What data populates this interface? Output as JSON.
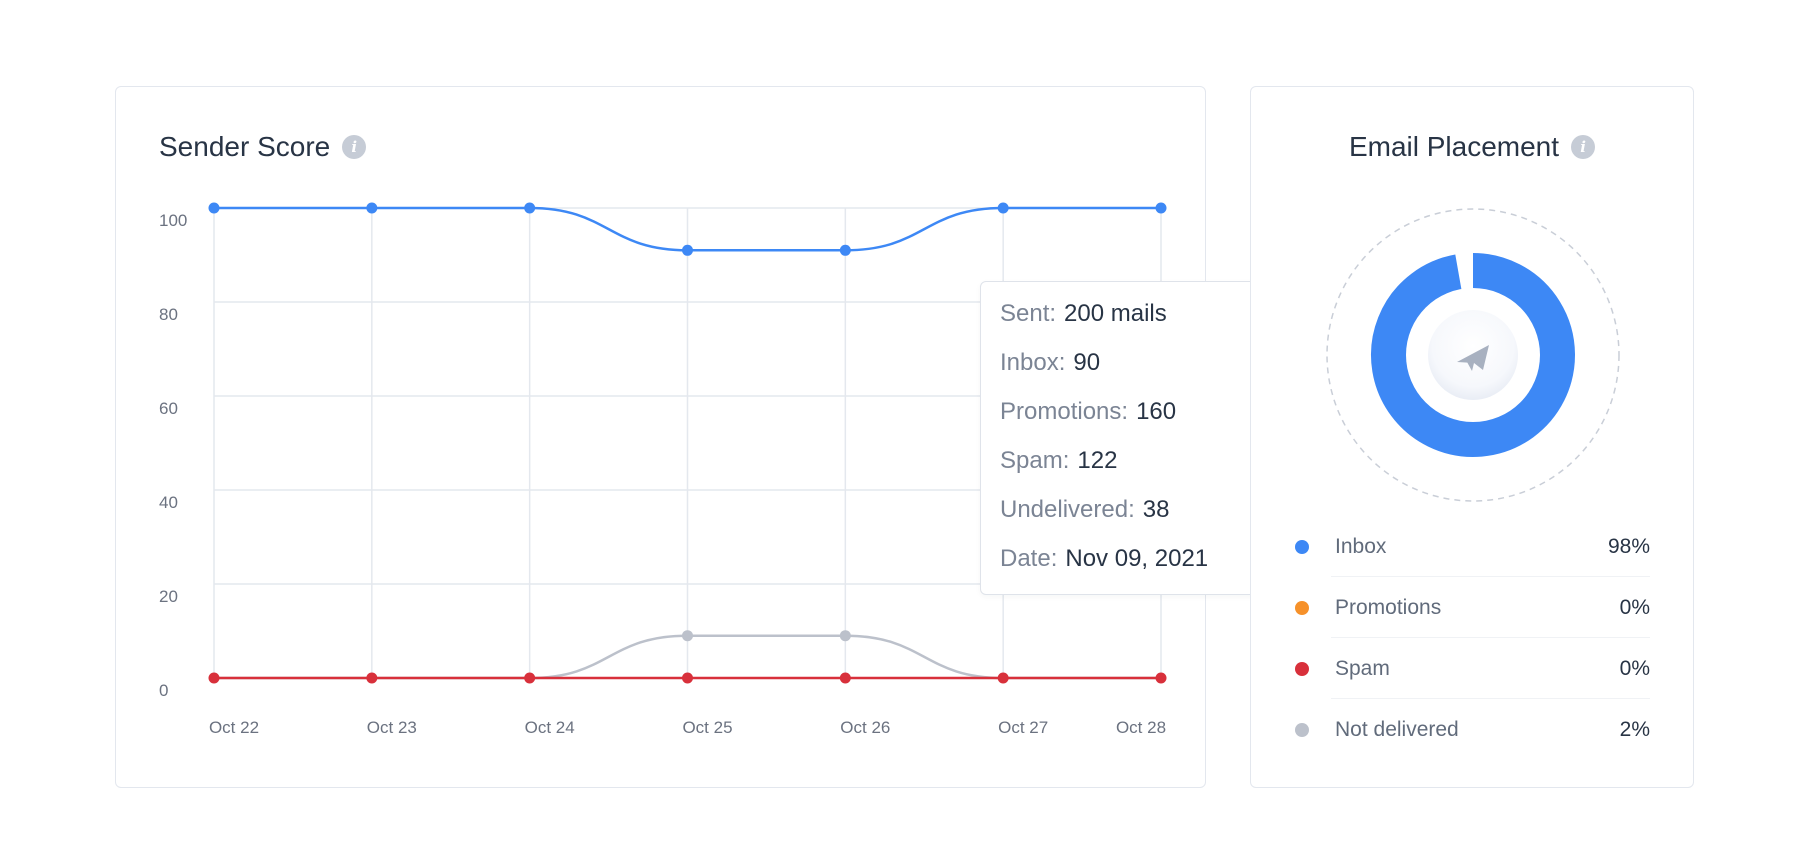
{
  "sender_score": {
    "title": "Sender Score",
    "info_icon": "info-icon",
    "tooltip": {
      "sent_label": "Sent:",
      "sent_value": "200 mails",
      "inbox_label": "Inbox:",
      "inbox_value": "90",
      "promotions_label": "Promotions:",
      "promotions_value": "160",
      "spam_label": "Spam:",
      "spam_value": "122",
      "undelivered_label": "Undelivered:",
      "undelivered_value": "38",
      "date_label": "Date:",
      "date_value": "Nov 09, 2021"
    }
  },
  "chart_data": {
    "type": "line",
    "title": "Sender Score",
    "categories": [
      "Oct 22",
      "Oct 23",
      "Oct 24",
      "Oct 25",
      "Oct 26",
      "Oct 27",
      "Oct 28"
    ],
    "y_ticks": [
      "100",
      "80",
      "60",
      "40",
      "20",
      "0"
    ],
    "ylim": [
      0,
      100
    ],
    "grid": true,
    "series": [
      {
        "color": "#3d88f5",
        "values": [
          100,
          100,
          100,
          91,
          91,
          100,
          100
        ]
      },
      {
        "color": "#bcc1cb",
        "values": [
          0,
          0,
          0,
          9,
          9,
          0,
          0
        ]
      },
      {
        "color": "#d8303b",
        "values": [
          0,
          0,
          0,
          0,
          0,
          0,
          0
        ]
      }
    ]
  },
  "email_placement": {
    "title": "Email Placement",
    "info_icon": "info-icon",
    "center_icon": "paper-plane-icon",
    "donut": {
      "inbox_fraction": 0.98,
      "color": "#3d88f5"
    },
    "legend": [
      {
        "label": "Inbox",
        "value": "98%",
        "color": "#3d88f5"
      },
      {
        "label": "Promotions",
        "value": "0%",
        "color": "#f6912a"
      },
      {
        "label": "Spam",
        "value": "0%",
        "color": "#d8303b"
      },
      {
        "label": "Not delivered",
        "value": "2%",
        "color": "#bcc1cb"
      }
    ]
  }
}
